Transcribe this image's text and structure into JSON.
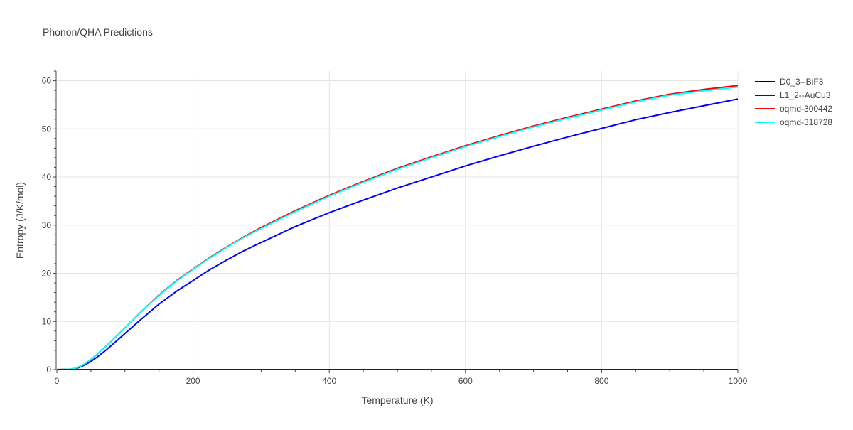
{
  "chart_data": {
    "type": "line",
    "title": "Phonon/QHA Predictions",
    "xlabel": "Temperature (K)",
    "ylabel": "Entropy (J/K/mol)",
    "xlim": [
      0,
      1000
    ],
    "ylim": [
      0,
      62
    ],
    "xticks": [
      0,
      200,
      400,
      600,
      800,
      1000
    ],
    "yticks": [
      0,
      10,
      20,
      30,
      40,
      50,
      60
    ],
    "grid": true,
    "legend_position": "right",
    "series": [
      {
        "name": "D0_3--BiF3",
        "color": "#000000",
        "x": [
          0,
          1000
        ],
        "y": [
          0,
          0
        ]
      },
      {
        "name": "L1_2--AuCu3",
        "color": "#0000ff",
        "x": [
          0,
          20,
          30,
          40,
          50,
          60,
          70,
          80,
          100,
          120,
          150,
          175,
          200,
          225,
          250,
          275,
          300,
          350,
          400,
          450,
          500,
          550,
          600,
          650,
          700,
          750,
          800,
          850,
          900,
          950,
          1000
        ],
        "y": [
          0,
          0.05,
          0.3,
          0.9,
          1.7,
          2.7,
          3.8,
          5.0,
          7.5,
          10.0,
          13.6,
          16.2,
          18.5,
          20.8,
          22.8,
          24.7,
          26.4,
          29.7,
          32.6,
          35.2,
          37.7,
          40.0,
          42.3,
          44.4,
          46.4,
          48.3,
          50.1,
          51.9,
          53.4,
          54.8,
          56.2
        ]
      },
      {
        "name": "oqmd-300442",
        "color": "#ff0000",
        "x": [
          0,
          20,
          30,
          40,
          50,
          60,
          70,
          80,
          100,
          120,
          150,
          175,
          200,
          225,
          250,
          275,
          300,
          350,
          400,
          450,
          500,
          550,
          600,
          650,
          700,
          750,
          800,
          850,
          900,
          950,
          1000
        ],
        "y": [
          0,
          0.07,
          0.4,
          1.1,
          2.1,
          3.3,
          4.6,
          5.9,
          8.7,
          11.5,
          15.5,
          18.4,
          20.9,
          23.3,
          25.5,
          27.6,
          29.5,
          33.0,
          36.2,
          39.1,
          41.8,
          44.2,
          46.5,
          48.6,
          50.6,
          52.4,
          54.1,
          55.8,
          57.2,
          58.2,
          59.0
        ]
      },
      {
        "name": "oqmd-318728",
        "color": "#00ffff",
        "x": [
          0,
          20,
          30,
          40,
          50,
          60,
          70,
          80,
          100,
          120,
          150,
          175,
          200,
          225,
          250,
          275,
          300,
          350,
          400,
          450,
          500,
          550,
          600,
          650,
          700,
          750,
          800,
          850,
          900,
          950,
          1000
        ],
        "y": [
          0,
          0.07,
          0.4,
          1.1,
          2.1,
          3.3,
          4.6,
          5.9,
          8.7,
          11.5,
          15.4,
          18.3,
          20.8,
          23.2,
          25.4,
          27.5,
          29.3,
          32.8,
          36.0,
          38.9,
          41.6,
          44.0,
          46.3,
          48.4,
          50.4,
          52.2,
          53.9,
          55.6,
          57.0,
          57.9,
          58.7
        ]
      }
    ]
  }
}
